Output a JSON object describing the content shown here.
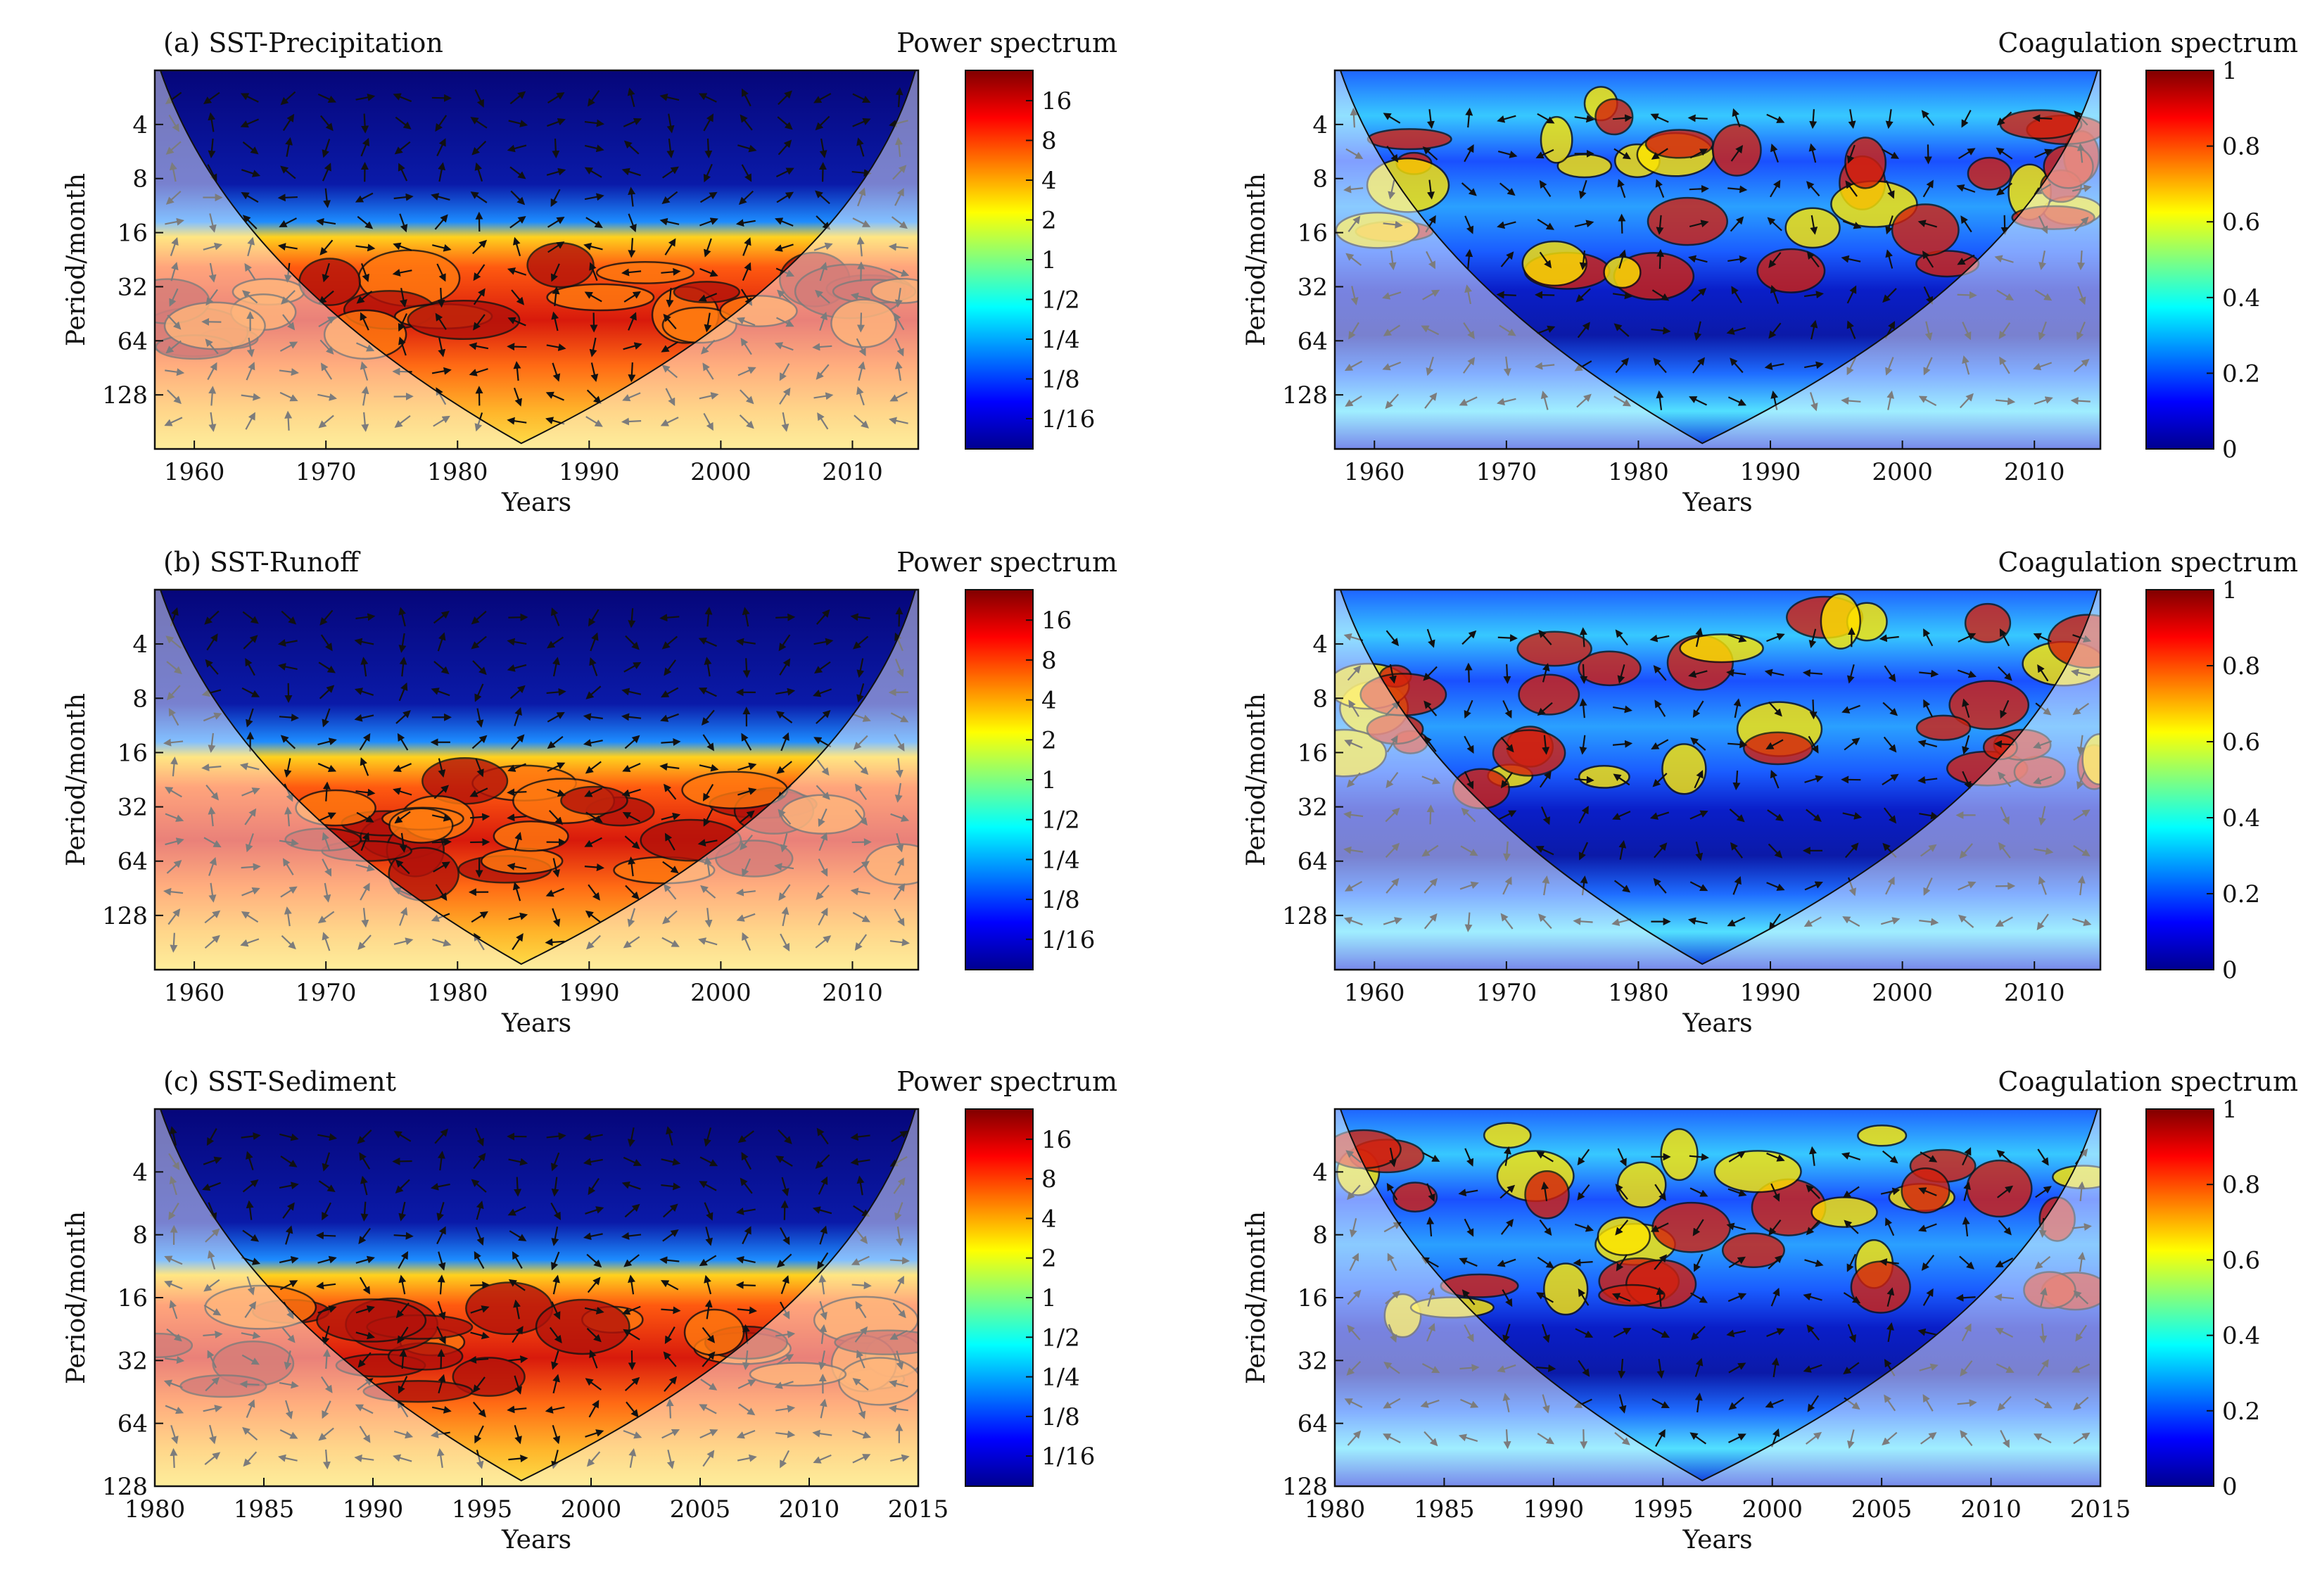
{
  "figure": {
    "panels": [
      {
        "id": "a-power",
        "title": "(a) SST-Precipitation",
        "cbar_title": "Power spectrum",
        "kind": "power",
        "xlabel": "Years",
        "ylabel": "Period/month",
        "xticks": [
          "1960",
          "1970",
          "1980",
          "1990",
          "2000",
          "2010"
        ],
        "xlim": [
          1957,
          2015
        ],
        "yticks": [
          "4",
          "8",
          "16",
          "32",
          "64",
          "128"
        ],
        "ylim": [
          2,
          256
        ],
        "cbar_ticks": [
          "16",
          "8",
          "4",
          "2",
          "1",
          "1/2",
          "1/4",
          "1/8",
          "1/16"
        ]
      },
      {
        "id": "a-coherence",
        "title": "",
        "cbar_title": "Coagulation spectrum",
        "kind": "coherence",
        "xlabel": "Years",
        "ylabel": "Period/month",
        "xticks": [
          "1960",
          "1970",
          "1980",
          "1990",
          "2000",
          "2010"
        ],
        "xlim": [
          1957,
          2015
        ],
        "yticks": [
          "4",
          "8",
          "16",
          "32",
          "64",
          "128"
        ],
        "ylim": [
          2,
          256
        ],
        "cbar_ticks": [
          "1",
          "0.8",
          "0.6",
          "0.4",
          "0.2",
          "0"
        ]
      },
      {
        "id": "b-power",
        "title": "(b) SST-Runoff",
        "cbar_title": "Power spectrum",
        "kind": "power",
        "xlabel": "Years",
        "ylabel": "Period/month",
        "xticks": [
          "1960",
          "1970",
          "1980",
          "1990",
          "2000",
          "2010"
        ],
        "xlim": [
          1957,
          2015
        ],
        "yticks": [
          "4",
          "8",
          "16",
          "32",
          "64",
          "128"
        ],
        "ylim": [
          2,
          256
        ],
        "cbar_ticks": [
          "16",
          "8",
          "4",
          "2",
          "1",
          "1/2",
          "1/4",
          "1/8",
          "1/16"
        ]
      },
      {
        "id": "b-coherence",
        "title": "",
        "cbar_title": "Coagulation spectrum",
        "kind": "coherence",
        "xlabel": "Years",
        "ylabel": "Period/month",
        "xticks": [
          "1960",
          "1970",
          "1980",
          "1990",
          "2000",
          "2010"
        ],
        "xlim": [
          1957,
          2015
        ],
        "yticks": [
          "4",
          "8",
          "16",
          "32",
          "64",
          "128"
        ],
        "ylim": [
          2,
          256
        ],
        "cbar_ticks": [
          "1",
          "0.8",
          "0.6",
          "0.4",
          "0.2",
          "0"
        ]
      },
      {
        "id": "c-power",
        "title": "(c) SST-Sediment",
        "cbar_title": "Power spectrum",
        "kind": "power",
        "xlabel": "Years",
        "ylabel": "Period/month",
        "xticks": [
          "1980",
          "1985",
          "1990",
          "1995",
          "2000",
          "2005",
          "2010",
          "2015"
        ],
        "xlim": [
          1980,
          2015
        ],
        "yticks": [
          "4",
          "8",
          "16",
          "32",
          "64",
          "128"
        ],
        "ylim": [
          2,
          128
        ],
        "cbar_ticks": [
          "16",
          "8",
          "4",
          "2",
          "1",
          "1/2",
          "1/4",
          "1/8",
          "1/16"
        ]
      },
      {
        "id": "c-coherence",
        "title": "",
        "cbar_title": "Coagulation spectrum",
        "kind": "coherence",
        "xlabel": "Years",
        "ylabel": "Period/month",
        "xticks": [
          "1980",
          "1985",
          "1990",
          "1995",
          "2000",
          "2005",
          "2010",
          "2015"
        ],
        "xlim": [
          1980,
          2015
        ],
        "yticks": [
          "4",
          "8",
          "16",
          "32",
          "64",
          "128"
        ],
        "ylim": [
          2,
          128
        ],
        "cbar_ticks": [
          "1",
          "0.8",
          "0.6",
          "0.4",
          "0.2",
          "0"
        ]
      }
    ]
  },
  "chart_data": [
    {
      "type": "heatmap",
      "title": "(a) SST-Precipitation",
      "subtitle": "Power spectrum",
      "xlabel": "Years",
      "ylabel": "Period/month",
      "xlim": [
        1957,
        2015
      ],
      "y_scale": "log2",
      "ylim": [
        2,
        256
      ],
      "y_reversed": true,
      "xticks": [
        1960,
        1970,
        1980,
        1990,
        2000,
        2010
      ],
      "yticks": [
        4,
        8,
        16,
        32,
        64,
        128
      ],
      "colorbar": {
        "scale": "log2",
        "ticks": [
          "1/16",
          "1/8",
          "1/4",
          "1/2",
          "1",
          "2",
          "4",
          "8",
          "16"
        ]
      },
      "grid": false,
      "high_power_band_period": [
        16,
        64
      ]
    },
    {
      "type": "heatmap",
      "title": "",
      "subtitle": "Coagulation spectrum",
      "xlabel": "Years",
      "ylabel": "Period/month",
      "xlim": [
        1957,
        2015
      ],
      "y_scale": "log2",
      "ylim": [
        2,
        256
      ],
      "y_reversed": true,
      "xticks": [
        1960,
        1970,
        1980,
        1990,
        2000,
        2010
      ],
      "yticks": [
        4,
        8,
        16,
        32,
        64,
        128
      ],
      "colorbar": {
        "range": [
          0,
          1
        ],
        "ticks": [
          0,
          0.2,
          0.4,
          0.6,
          0.8,
          1
        ]
      },
      "grid": false
    },
    {
      "type": "heatmap",
      "title": "(b) SST-Runoff",
      "subtitle": "Power spectrum",
      "xlabel": "Years",
      "ylabel": "Period/month",
      "xlim": [
        1957,
        2015
      ],
      "y_scale": "log2",
      "ylim": [
        2,
        256
      ],
      "y_reversed": true,
      "xticks": [
        1960,
        1970,
        1980,
        1990,
        2000,
        2010
      ],
      "yticks": [
        4,
        8,
        16,
        32,
        64,
        128
      ],
      "colorbar": {
        "scale": "log2",
        "ticks": [
          "1/16",
          "1/8",
          "1/4",
          "1/2",
          "1",
          "2",
          "4",
          "8",
          "16"
        ]
      },
      "grid": false,
      "high_power_band_period": [
        16,
        64
      ]
    },
    {
      "type": "heatmap",
      "title": "",
      "subtitle": "Coagulation spectrum",
      "xlabel": "Years",
      "ylabel": "Period/month",
      "xlim": [
        1957,
        2015
      ],
      "y_scale": "log2",
      "ylim": [
        2,
        256
      ],
      "y_reversed": true,
      "xticks": [
        1960,
        1970,
        1980,
        1990,
        2000,
        2010
      ],
      "yticks": [
        4,
        8,
        16,
        32,
        64,
        128
      ],
      "colorbar": {
        "range": [
          0,
          1
        ],
        "ticks": [
          0,
          0.2,
          0.4,
          0.6,
          0.8,
          1
        ]
      },
      "grid": false
    },
    {
      "type": "heatmap",
      "title": "(c) SST-Sediment",
      "subtitle": "Power spectrum",
      "xlabel": "Years",
      "ylabel": "Period/month",
      "xlim": [
        1980,
        2015
      ],
      "y_scale": "log2",
      "ylim": [
        2,
        128
      ],
      "y_reversed": true,
      "xticks": [
        1980,
        1985,
        1990,
        1995,
        2000,
        2005,
        2010,
        2015
      ],
      "yticks": [
        4,
        8,
        16,
        32,
        64,
        128
      ],
      "colorbar": {
        "scale": "log2",
        "ticks": [
          "1/16",
          "1/8",
          "1/4",
          "1/2",
          "1",
          "2",
          "4",
          "8",
          "16"
        ]
      },
      "grid": false,
      "high_power_band_period": [
        16,
        64
      ]
    },
    {
      "type": "heatmap",
      "title": "",
      "subtitle": "Coagulation spectrum",
      "xlabel": "Years",
      "ylabel": "Period/month",
      "xlim": [
        1980,
        2015
      ],
      "y_scale": "log2",
      "ylim": [
        2,
        128
      ],
      "y_reversed": true,
      "xticks": [
        1980,
        1985,
        1990,
        1995,
        2000,
        2005,
        2010,
        2015
      ],
      "yticks": [
        4,
        8,
        16,
        32,
        64,
        128
      ],
      "colorbar": {
        "range": [
          0,
          1
        ],
        "ticks": [
          0,
          0.2,
          0.4,
          0.6,
          0.8,
          1
        ]
      },
      "grid": false
    }
  ]
}
